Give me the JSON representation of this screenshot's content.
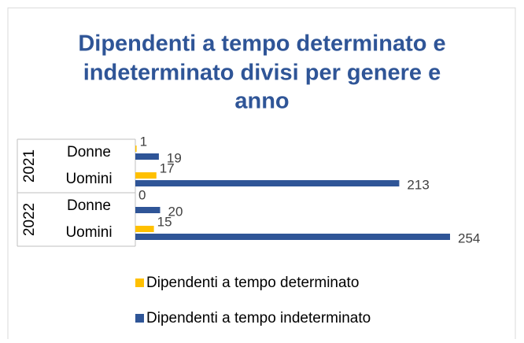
{
  "chart_data": {
    "type": "bar",
    "orientation": "horizontal",
    "title": [
      "Dipendenti a tempo determinato e",
      "indeterminato divisi per genere e",
      "anno"
    ],
    "category_groups": [
      "2021",
      "2022"
    ],
    "categories": [
      "Donne",
      "Uomini",
      "Donne",
      "Uomini"
    ],
    "series": [
      {
        "name": "Dipendenti a tempo determinato",
        "color": "#ffc000",
        "values": [
          1,
          17,
          0,
          15
        ]
      },
      {
        "name": "Dipendenti a tempo indeterminato",
        "color": "#2f5597",
        "values": [
          19,
          213,
          20,
          254
        ]
      }
    ],
    "legend": "bottom"
  }
}
